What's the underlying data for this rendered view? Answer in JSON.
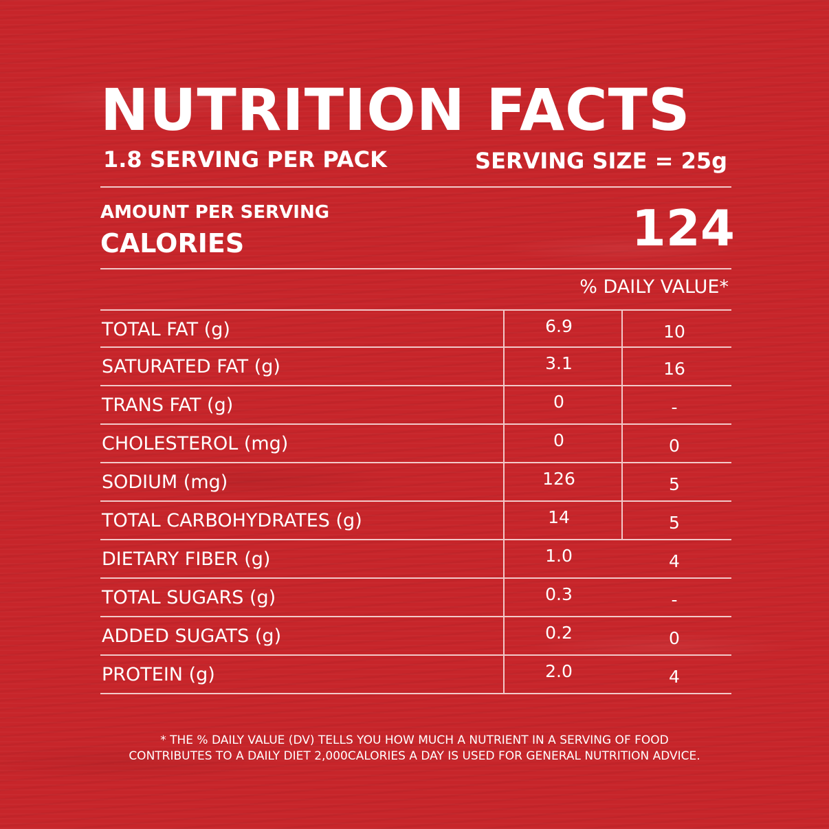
{
  "title": "NUTRITION FACTS",
  "servings_per_pack": "1.8 SERVING PER PACK",
  "serving_size": "SERVING SIZE = 25g",
  "amount_per_serving_label": "AMOUNT PER SERVING",
  "calories_label": "CALORIES",
  "calories_value": "124",
  "daily_value_header": "% DAILY VALUE*",
  "rows": [
    {
      "name": "TOTAL FAT (g)",
      "amount": "6.9",
      "dv": "10"
    },
    {
      "name": "SATURATED FAT (g)",
      "amount": "3.1",
      "dv": "16"
    },
    {
      "name": "TRANS FAT (g)",
      "amount": "0",
      "dv": "-"
    },
    {
      "name": "CHOLESTEROL (mg)",
      "amount": "0",
      "dv": "0"
    },
    {
      "name": "SODIUM (mg)",
      "amount": "126",
      "dv": "5"
    },
    {
      "name": "TOTAL CARBOHYDRATES (g)",
      "amount": "14",
      "dv": "5"
    },
    {
      "name": "DIETARY FIBER (g)",
      "amount": "1.0",
      "dv": "4"
    },
    {
      "name": "TOTAL SUGARS (g)",
      "amount": "0.3",
      "dv": "-"
    },
    {
      "name": "ADDED SUGATS (g)",
      "amount": "0.2",
      "dv": "0"
    },
    {
      "name": "PROTEIN (g)",
      "amount": "2.0",
      "dv": "4"
    }
  ],
  "footnote": {
    "line1": "* THE % DAILY VALUE (DV) TELLS YOU HOW MUCH A NUTRIENT IN A SERVING OF FOOD",
    "line2": "CONTRIBUTES TO A DAILY DIET 2,000CALORIES A DAY IS USED FOR GENERAL NUTRITION ADVICE."
  },
  "colors": {
    "background": "#c7252a",
    "text": "#ffffff",
    "rule": "#f2c9c9"
  }
}
